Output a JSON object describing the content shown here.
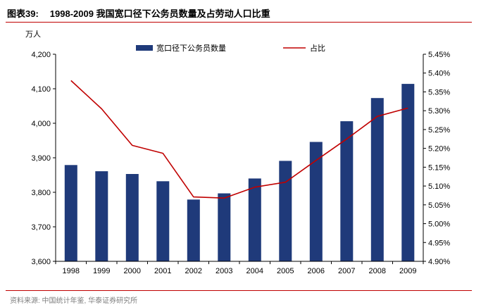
{
  "figure": {
    "label": "图表39:",
    "title": "1998-2009 我国宽口径下公务员数量及占劳动人口比重",
    "source": "资料来源: 中国统计年鉴, 华泰证券研究所"
  },
  "colors": {
    "bar": "#1f3a7a",
    "line": "#c00000",
    "rule": "#c00000"
  },
  "chart_data": {
    "type": "bar",
    "title": "1998-2009 我国宽口径下公务员数量及占劳动人口比重",
    "xlabel": "",
    "ylabel": "万人",
    "ylim": [
      3600,
      4200
    ],
    "y_ticks": [
      "3,600",
      "3,700",
      "3,800",
      "3,900",
      "4,000",
      "4,100",
      "4,200"
    ],
    "y2lim": [
      4.9,
      5.45
    ],
    "y2_ticks": [
      "4.90%",
      "4.95%",
      "5.00%",
      "5.05%",
      "5.10%",
      "5.15%",
      "5.20%",
      "5.25%",
      "5.30%",
      "5.35%",
      "5.40%",
      "5.45%"
    ],
    "categories": [
      "1998",
      "1999",
      "2000",
      "2001",
      "2002",
      "2003",
      "2004",
      "2005",
      "2006",
      "2007",
      "2008",
      "2009"
    ],
    "series": [
      {
        "name": "宽口径下公务员数量",
        "type": "bar",
        "axis": "left",
        "values": [
          3879,
          3861,
          3853,
          3832,
          3779,
          3797,
          3840,
          3891,
          3946,
          4006,
          4073,
          4114
        ]
      },
      {
        "name": "占比",
        "type": "line",
        "axis": "right",
        "values": [
          5.38,
          5.305,
          5.208,
          5.187,
          5.071,
          5.068,
          5.097,
          5.11,
          5.168,
          5.225,
          5.285,
          5.307
        ]
      }
    ],
    "legend_position": "top"
  }
}
